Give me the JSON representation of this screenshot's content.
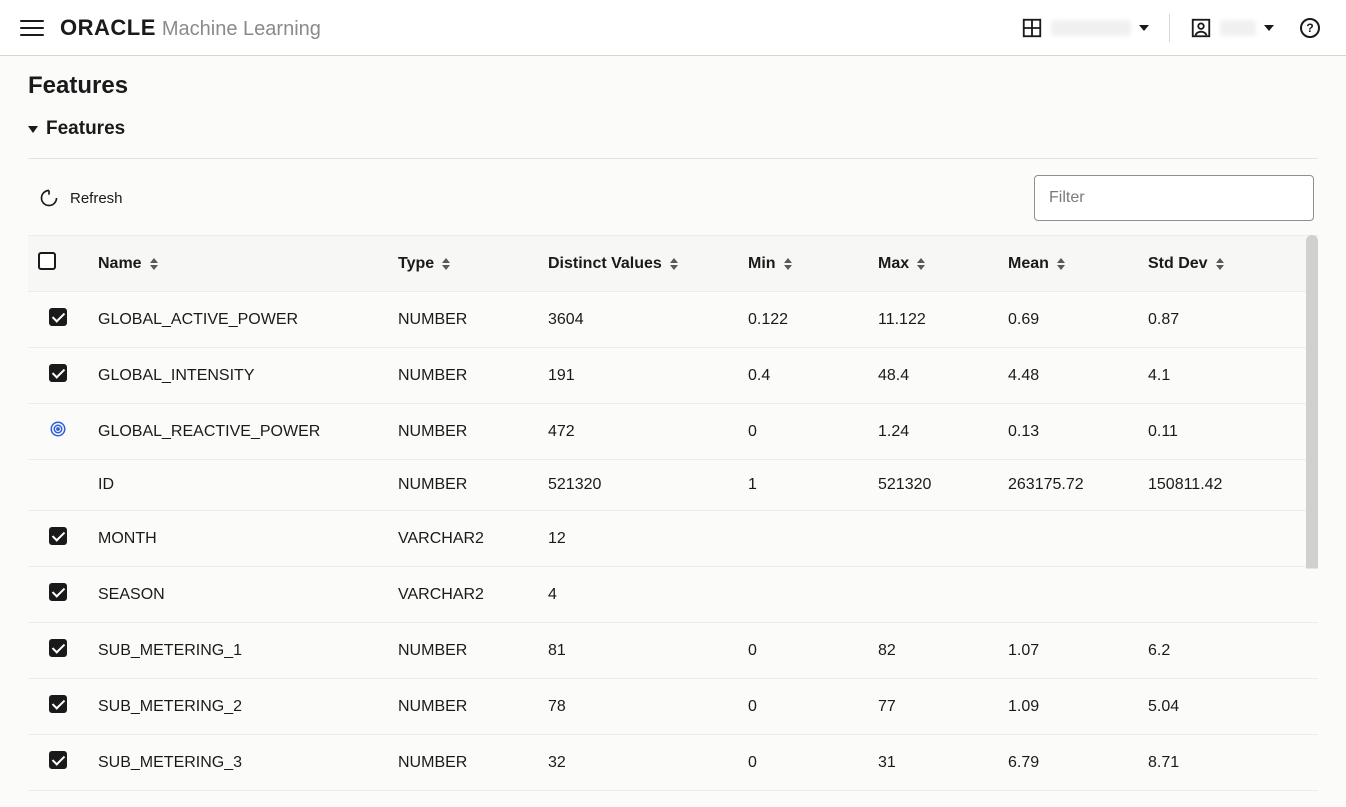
{
  "brand": {
    "logo": "ORACLE",
    "sub": "Machine Learning"
  },
  "page": {
    "title": "Features"
  },
  "section": {
    "title": "Features"
  },
  "toolbar": {
    "refresh_label": "Refresh",
    "filter_placeholder": "Filter"
  },
  "columns": {
    "name": "Name",
    "type": "Type",
    "distinct": "Distinct Values",
    "min": "Min",
    "max": "Max",
    "mean": "Mean",
    "std": "Std Dev"
  },
  "rows": [
    {
      "selector": "checked",
      "name": "GLOBAL_ACTIVE_POWER",
      "type": "NUMBER",
      "distinct": "3604",
      "min": "0.122",
      "max": "11.122",
      "mean": "0.69",
      "std": "0.87"
    },
    {
      "selector": "checked",
      "name": "GLOBAL_INTENSITY",
      "type": "NUMBER",
      "distinct": "191",
      "min": "0.4",
      "max": "48.4",
      "mean": "4.48",
      "std": "4.1"
    },
    {
      "selector": "target",
      "name": "GLOBAL_REACTIVE_POWER",
      "type": "NUMBER",
      "distinct": "472",
      "min": "0",
      "max": "1.24",
      "mean": "0.13",
      "std": "0.11"
    },
    {
      "selector": "none",
      "name": "ID",
      "type": "NUMBER",
      "distinct": "521320",
      "min": "1",
      "max": "521320",
      "mean": "263175.72",
      "std": "150811.42"
    },
    {
      "selector": "checked",
      "name": "MONTH",
      "type": "VARCHAR2",
      "distinct": "12",
      "min": "",
      "max": "",
      "mean": "",
      "std": ""
    },
    {
      "selector": "checked",
      "name": "SEASON",
      "type": "VARCHAR2",
      "distinct": "4",
      "min": "",
      "max": "",
      "mean": "",
      "std": ""
    },
    {
      "selector": "checked",
      "name": "SUB_METERING_1",
      "type": "NUMBER",
      "distinct": "81",
      "min": "0",
      "max": "82",
      "mean": "1.07",
      "std": "6.2"
    },
    {
      "selector": "checked",
      "name": "SUB_METERING_2",
      "type": "NUMBER",
      "distinct": "78",
      "min": "0",
      "max": "77",
      "mean": "1.09",
      "std": "5.04"
    },
    {
      "selector": "checked",
      "name": "SUB_METERING_3",
      "type": "NUMBER",
      "distinct": "32",
      "min": "0",
      "max": "31",
      "mean": "6.79",
      "std": "8.71"
    }
  ],
  "colors": {
    "target_icon": "#2C5FD8"
  }
}
